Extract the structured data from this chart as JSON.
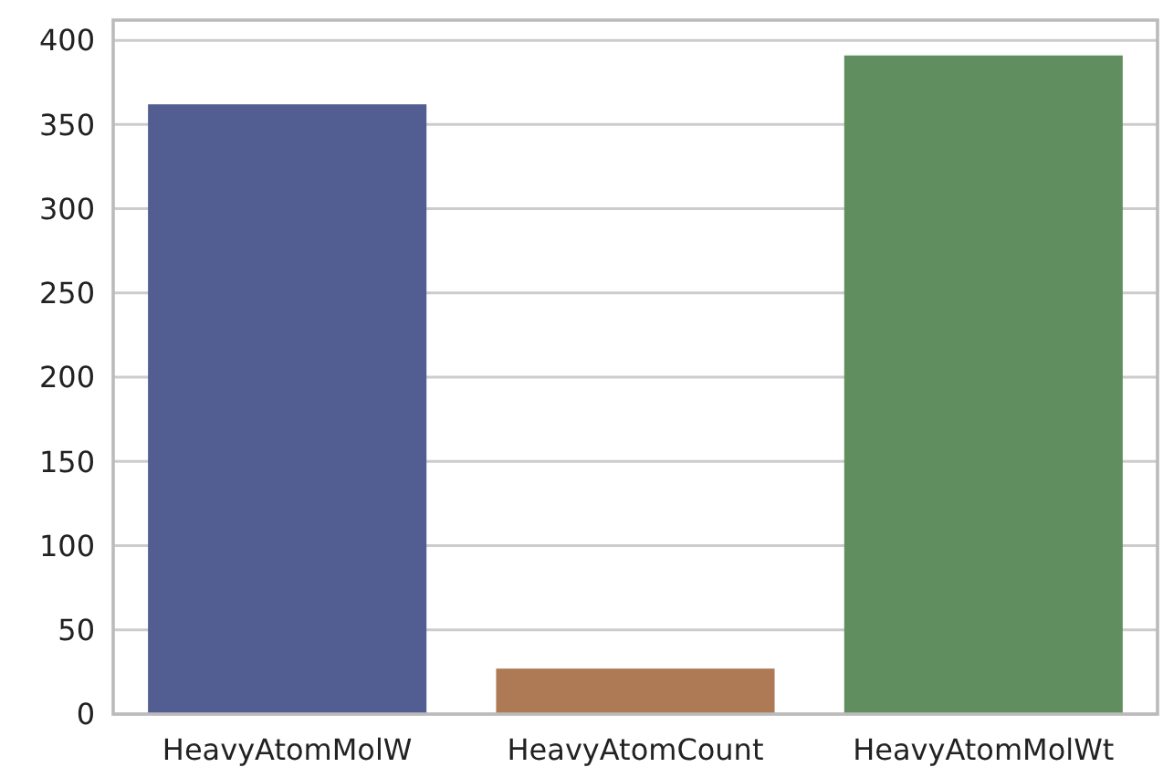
{
  "chart_data": {
    "type": "bar",
    "categories": [
      "HeavyAtomMolW",
      "HeavyAtomCount",
      "HeavyAtomMolWt"
    ],
    "values": [
      362,
      27,
      391
    ],
    "colors": [
      "#525e92",
      "#ad7a55",
      "#618e5e"
    ],
    "ylim": [
      0,
      412
    ],
    "yticks": [
      0,
      50,
      100,
      150,
      200,
      250,
      300,
      350,
      400
    ],
    "grid": "y"
  }
}
